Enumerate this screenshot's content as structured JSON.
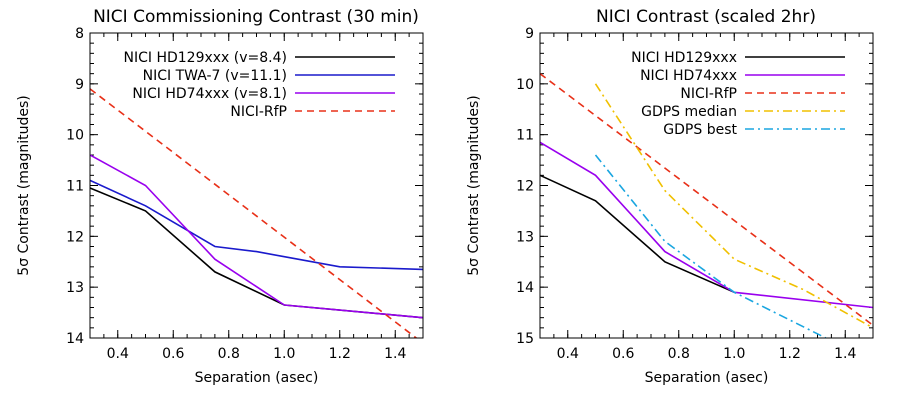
{
  "chart_data": [
    {
      "type": "line",
      "title": "NICI Commissioning Contrast (30 min)",
      "xlabel": "Separation (asec)",
      "ylabel": "5σ Contrast (magnitudes)",
      "xlim": [
        0.3,
        1.5
      ],
      "ylim": [
        8,
        14
      ],
      "y_inverted": true,
      "xticks": [
        "0.4",
        "0.6",
        "0.8",
        "1.0",
        "1.2",
        "1.4"
      ],
      "yticks": [
        "8",
        "9",
        "10",
        "11",
        "12",
        "13",
        "14"
      ],
      "legend_position": "top-right",
      "series": [
        {
          "name": "NICI HD129xxx (v=8.4)",
          "color": "#000000",
          "dash": "solid",
          "x": [
            0.3,
            0.5,
            0.75,
            1.0,
            1.5
          ],
          "y": [
            11.05,
            11.5,
            12.7,
            13.35,
            13.6
          ]
        },
        {
          "name": "NICI TWA-7 (v=11.1)",
          "color": "#1a1acc",
          "dash": "solid",
          "x": [
            0.3,
            0.5,
            0.75,
            0.9,
            1.0,
            1.2,
            1.5
          ],
          "y": [
            10.9,
            11.4,
            12.2,
            12.3,
            12.4,
            12.6,
            12.65
          ]
        },
        {
          "name": "NICI HD74xxx (v=8.1)",
          "color": "#9900ee",
          "dash": "solid",
          "x": [
            0.3,
            0.5,
            0.75,
            1.0,
            1.5
          ],
          "y": [
            10.4,
            11.0,
            12.45,
            13.35,
            13.6
          ]
        },
        {
          "name": "NICI-RfP",
          "color": "#e83018",
          "dash": "dash",
          "x": [
            0.3,
            1.5
          ],
          "y": [
            9.1,
            14.1
          ]
        }
      ]
    },
    {
      "type": "line",
      "title": "NICI Contrast (scaled 2hr)",
      "xlabel": "Separation (asec)",
      "ylabel": "5σ Contrast (magnitudes)",
      "xlim": [
        0.3,
        1.5
      ],
      "ylim": [
        9,
        15
      ],
      "y_inverted": true,
      "xticks": [
        "0.4",
        "0.6",
        "0.8",
        "1.0",
        "1.2",
        "1.4"
      ],
      "yticks": [
        "9",
        "10",
        "11",
        "12",
        "13",
        "14",
        "15"
      ],
      "legend_position": "top-right",
      "series": [
        {
          "name": "NICI HD129xxx",
          "color": "#000000",
          "dash": "solid",
          "x": [
            0.3,
            0.5,
            0.75,
            1.0
          ],
          "y": [
            11.8,
            12.3,
            13.5,
            14.1
          ]
        },
        {
          "name": "NICI HD74xxx",
          "color": "#9900ee",
          "dash": "solid",
          "x": [
            0.3,
            0.5,
            0.75,
            1.0,
            1.5
          ],
          "y": [
            11.15,
            11.8,
            13.3,
            14.1,
            14.4
          ]
        },
        {
          "name": "NICI-RfP",
          "color": "#e83018",
          "dash": "dash",
          "x": [
            0.3,
            1.5
          ],
          "y": [
            9.8,
            14.75
          ]
        },
        {
          "name": "GDPS median",
          "color": "#f0c000",
          "dash": "dashdot",
          "x": [
            0.5,
            0.75,
            1.0,
            1.25,
            1.5
          ],
          "y": [
            10.0,
            12.1,
            13.45,
            14.05,
            14.8
          ]
        },
        {
          "name": "GDPS best",
          "color": "#1aa6e0",
          "dash": "dashdot",
          "x": [
            0.5,
            0.75,
            1.0,
            1.33
          ],
          "y": [
            11.4,
            13.1,
            14.1,
            15.0
          ]
        }
      ]
    }
  ]
}
